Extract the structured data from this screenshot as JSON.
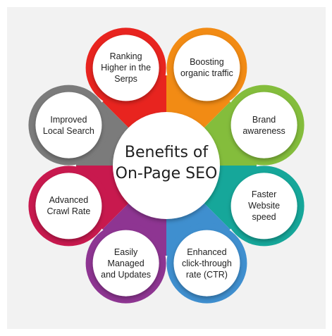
{
  "center": {
    "title": "Benefits of\nOn-Page SEO"
  },
  "petals": [
    {
      "label": "Ranking\nHigher in the\nSerps",
      "color": "#e8241f"
    },
    {
      "label": "Boosting\norganic traffic",
      "color": "#f28b14"
    },
    {
      "label": "Brand\nawareness",
      "color": "#84bd3c"
    },
    {
      "label": "Faster\nWebsite\nspeed",
      "color": "#16a79a"
    },
    {
      "label": "Enhanced\nclick-through\nrate (CTR)",
      "color": "#3f8fcf"
    },
    {
      "label": "Easily\nManaged\nand Updates",
      "color": "#8e3592"
    },
    {
      "label": "Advanced\nCrawl Rate",
      "color": "#c8194e"
    },
    {
      "label": "Improved\nLocal Search",
      "color": "#7b7b7b"
    }
  ]
}
